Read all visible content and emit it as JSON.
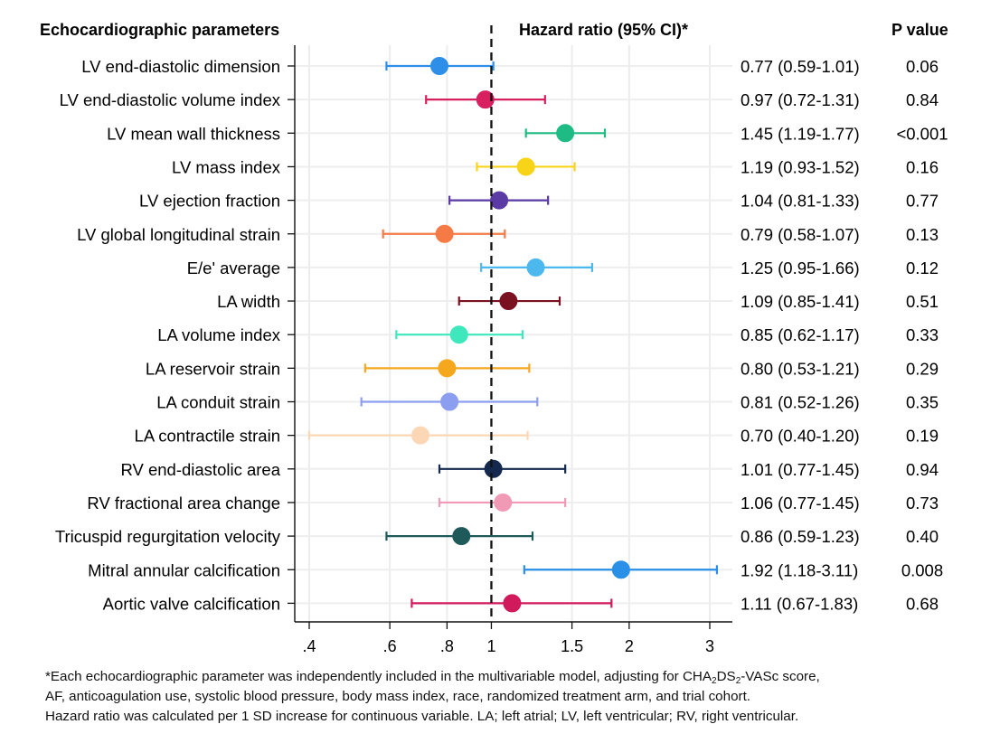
{
  "chart_data": {
    "type": "forest",
    "headers": {
      "parameter": "Echocardiographic parameters",
      "hr": "Hazard ratio (95% CI)*",
      "p": "P value"
    },
    "x_scale": "log",
    "xlim": [
      0.38,
      3.3
    ],
    "reference_line": 1,
    "x_ticks": [
      {
        "value": 0.4,
        "label": ".4"
      },
      {
        "value": 0.6,
        "label": ".6"
      },
      {
        "value": 0.8,
        "label": ".8"
      },
      {
        "value": 1,
        "label": "1"
      },
      {
        "value": 1.5,
        "label": "1.5"
      },
      {
        "value": 2,
        "label": "2"
      },
      {
        "value": 3,
        "label": "3"
      }
    ],
    "rows": [
      {
        "label": "LV end-diastolic dimension",
        "hr": 0.77,
        "lo": 0.59,
        "hi": 1.01,
        "text": "0.77 (0.59-1.01)",
        "p": "0.06",
        "color": "#2e8fe8"
      },
      {
        "label": "LV end-diastolic volume index",
        "hr": 0.97,
        "lo": 0.72,
        "hi": 1.31,
        "text": "0.97 (0.72-1.31)",
        "p": "0.84",
        "color": "#d81f5f"
      },
      {
        "label": "LV mean wall thickness",
        "hr": 1.45,
        "lo": 1.19,
        "hi": 1.77,
        "text": "1.45 (1.19-1.77)",
        "p": "<0.001",
        "color": "#1ebc84"
      },
      {
        "label": "LV mass index",
        "hr": 1.19,
        "lo": 0.93,
        "hi": 1.52,
        "text": "1.19 (0.93-1.52)",
        "p": "0.16",
        "color": "#f7d417"
      },
      {
        "label": "LV ejection fraction",
        "hr": 1.04,
        "lo": 0.81,
        "hi": 1.33,
        "text": "1.04 (0.81-1.33)",
        "p": "0.77",
        "color": "#5b3aa6"
      },
      {
        "label": "LV global longitudinal strain",
        "hr": 0.79,
        "lo": 0.58,
        "hi": 1.07,
        "text": "0.79 (0.58-1.07)",
        "p": "0.13",
        "color": "#f57a45"
      },
      {
        "label": "E/e' average",
        "hr": 1.25,
        "lo": 0.95,
        "hi": 1.66,
        "text": "1.25 (0.95-1.66)",
        "p": "0.12",
        "color": "#4cb8ee"
      },
      {
        "label": "LA width",
        "hr": 1.09,
        "lo": 0.85,
        "hi": 1.41,
        "text": "1.09 (0.85-1.41)",
        "p": "0.51",
        "color": "#7a1020"
      },
      {
        "label": "LA volume index",
        "hr": 0.85,
        "lo": 0.62,
        "hi": 1.17,
        "text": "0.85 (0.62-1.17)",
        "p": "0.33",
        "color": "#3ee8bc"
      },
      {
        "label": "LA reservoir strain",
        "hr": 0.8,
        "lo": 0.53,
        "hi": 1.21,
        "text": "0.80 (0.53-1.21)",
        "p": "0.29",
        "color": "#f5a81e"
      },
      {
        "label": "LA conduit strain",
        "hr": 0.81,
        "lo": 0.52,
        "hi": 1.26,
        "text": "0.81 (0.52-1.26)",
        "p": "0.35",
        "color": "#8c9ef0"
      },
      {
        "label": "LA contractile strain",
        "hr": 0.7,
        "lo": 0.4,
        "hi": 1.2,
        "text": "0.70 (0.40-1.20)",
        "p": "0.19",
        "color": "#fbd7b5"
      },
      {
        "label": "RV end-diastolic area",
        "hr": 1.01,
        "lo": 0.77,
        "hi": 1.45,
        "text": "1.01 (0.77-1.45)",
        "p": "0.94",
        "color": "#14294d"
      },
      {
        "label": "RV fractional area change",
        "hr": 1.06,
        "lo": 0.77,
        "hi": 1.45,
        "text": "1.06 (0.77-1.45)",
        "p": "0.73",
        "color": "#f19ab6"
      },
      {
        "label": "Tricuspid regurgitation velocity",
        "hr": 0.86,
        "lo": 0.59,
        "hi": 1.23,
        "text": "0.86 (0.59-1.23)",
        "p": "0.40",
        "color": "#1e5a5a"
      },
      {
        "label": "Mitral annular calcification",
        "hr": 1.92,
        "lo": 1.18,
        "hi": 3.11,
        "text": "1.92 (1.18-3.11)",
        "p": "0.008",
        "color": "#2a8fe6"
      },
      {
        "label": "Aortic valve calcification",
        "hr": 1.11,
        "lo": 0.67,
        "hi": 1.83,
        "text": "1.11 (0.67-1.83)",
        "p": "0.68",
        "color": "#d11a5c"
      }
    ]
  },
  "footnote": {
    "line1_pre": "*Each echocardiographic parameter was independently included in the multivariable model, adjusting for CHA",
    "sub1": "2",
    "mid": "DS",
    "sub2": "2",
    "line1_post": "-VASc score,",
    "line2": "AF, anticoagulation use, systolic blood pressure, body mass index, race, randomized treatment arm, and trial cohort.",
    "line3": "Hazard ratio was calculated per 1 SD increase for continuous variable. LA; left atrial; LV, left ventricular; RV, right ventricular."
  }
}
